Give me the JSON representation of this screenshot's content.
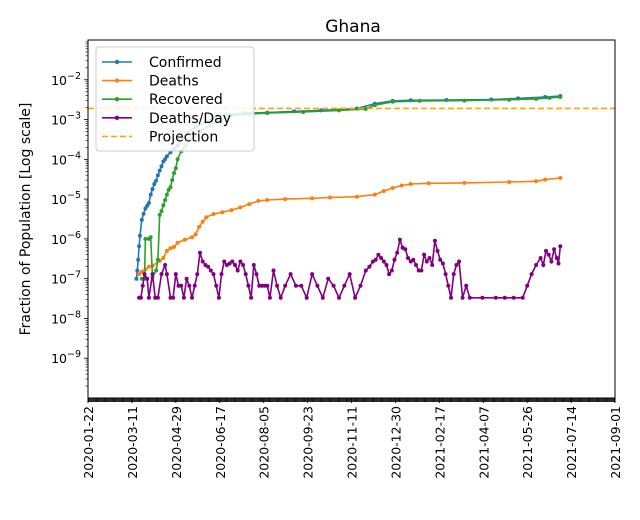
{
  "chart_data": {
    "type": "line",
    "title": "Ghana",
    "xlabel": "",
    "ylabel": "Fraction of Population [Log scale]",
    "yscale": "log",
    "ylim": [
      1e-10,
      0.1
    ],
    "xlim": [
      "2020-01-22",
      "2021-09-01"
    ],
    "x_ticks": [
      "2020-01-22",
      "2020-03-11",
      "2020-04-29",
      "2020-06-17",
      "2020-08-05",
      "2020-09-23",
      "2020-11-11",
      "2020-12-30",
      "2021-02-17",
      "2021-04-07",
      "2021-05-26",
      "2021-07-14",
      "2021-09-01"
    ],
    "y_ticks": [
      {
        "exp": -9,
        "label": "10",
        "sup": "−9"
      },
      {
        "exp": -8,
        "label": "10",
        "sup": "−8"
      },
      {
        "exp": -7,
        "label": "10",
        "sup": "−7"
      },
      {
        "exp": -6,
        "label": "10",
        "sup": "−6"
      },
      {
        "exp": -5,
        "label": "10",
        "sup": "−5"
      },
      {
        "exp": -4,
        "label": "10",
        "sup": "−4"
      },
      {
        "exp": -3,
        "label": "10",
        "sup": "−3"
      },
      {
        "exp": -2,
        "label": "10",
        "sup": "−2"
      }
    ],
    "legend": [
      {
        "name": "Confirmed",
        "color": "#1f77b4",
        "style": "line-marker"
      },
      {
        "name": "Deaths",
        "color": "#ff7f0e",
        "style": "line-marker"
      },
      {
        "name": "Recovered",
        "color": "#2ca02c",
        "style": "line-marker"
      },
      {
        "name": "Deaths/Day",
        "color": "#800080",
        "style": "line-marker"
      },
      {
        "name": "Projection",
        "color": "#ffa500",
        "style": "dashed"
      }
    ],
    "legend_position": "top-left",
    "projection_value": 0.0019,
    "series": [
      {
        "name": "Confirmed",
        "color": "#1f77b4",
        "points": [
          [
            54,
            1e-07
          ],
          [
            55,
            1.6e-07
          ],
          [
            56,
            3e-07
          ],
          [
            57,
            6.5e-07
          ],
          [
            58,
            1.2e-06
          ],
          [
            60,
            3e-06
          ],
          [
            62,
            4.3e-06
          ],
          [
            64,
            5.8e-06
          ],
          [
            66,
            6.8e-06
          ],
          [
            68,
            8e-06
          ],
          [
            70,
            1.3e-05
          ],
          [
            72,
            1.8e-05
          ],
          [
            74,
            2.4e-05
          ],
          [
            76,
            2.9e-05
          ],
          [
            78,
            4e-05
          ],
          [
            80,
            5.2e-05
          ],
          [
            82,
            6.7e-05
          ],
          [
            84,
            8.8e-05
          ],
          [
            86,
            0.0001
          ],
          [
            88,
            0.00012
          ],
          [
            92,
            0.00015
          ],
          [
            96,
            0.00018
          ],
          [
            100,
            0.00022
          ],
          [
            105,
            0.00032
          ],
          [
            110,
            0.00045
          ],
          [
            120,
            0.00065
          ],
          [
            130,
            0.00085
          ],
          [
            140,
            0.0011
          ],
          [
            155,
            0.00135
          ],
          [
            175,
            0.00145
          ],
          [
            200,
            0.0015
          ],
          [
            230,
            0.0016
          ],
          [
            260,
            0.0017
          ],
          [
            300,
            0.0019
          ],
          [
            320,
            0.0025
          ],
          [
            340,
            0.00295
          ],
          [
            360,
            0.00305
          ],
          [
            400,
            0.0031
          ],
          [
            450,
            0.0032
          ],
          [
            480,
            0.0034
          ],
          [
            510,
            0.0037
          ],
          [
            527,
            0.0039
          ]
        ]
      },
      {
        "name": "Deaths",
        "color": "#ff7f0e",
        "points": [
          [
            57,
            1.3e-07
          ],
          [
            60,
            1.5e-07
          ],
          [
            64,
            1.7e-07
          ],
          [
            68,
            2e-07
          ],
          [
            72,
            2.1e-07
          ],
          [
            80,
            2.8e-07
          ],
          [
            84,
            3.3e-07
          ],
          [
            88,
            5e-07
          ],
          [
            92,
            5.8e-07
          ],
          [
            96,
            6.3e-07
          ],
          [
            100,
            8e-07
          ],
          [
            108,
            9.5e-07
          ],
          [
            116,
            1.1e-06
          ],
          [
            120,
            1.3e-06
          ],
          [
            124,
            2e-06
          ],
          [
            128,
            2.7e-06
          ],
          [
            132,
            3.5e-06
          ],
          [
            140,
            4.2e-06
          ],
          [
            150,
            4.7e-06
          ],
          [
            160,
            5.3e-06
          ],
          [
            170,
            6.2e-06
          ],
          [
            180,
            7.5e-06
          ],
          [
            190,
            9e-06
          ],
          [
            200,
            9.5e-06
          ],
          [
            220,
            1e-05
          ],
          [
            250,
            1.05e-05
          ],
          [
            270,
            1.1e-05
          ],
          [
            300,
            1.15e-05
          ],
          [
            320,
            1.3e-05
          ],
          [
            330,
            1.6e-05
          ],
          [
            340,
            1.9e-05
          ],
          [
            350,
            2.2e-05
          ],
          [
            360,
            2.4e-05
          ],
          [
            380,
            2.5e-05
          ],
          [
            420,
            2.55e-05
          ],
          [
            470,
            2.7e-05
          ],
          [
            500,
            2.8e-05
          ],
          [
            510,
            3.1e-05
          ],
          [
            527,
            3.4e-05
          ]
        ]
      },
      {
        "name": "Recovered",
        "color": "#2ca02c",
        "points": [
          [
            60,
            1e-07
          ],
          [
            63,
            1e-07
          ],
          [
            64,
            1e-06
          ],
          [
            68,
            1e-06
          ],
          [
            70,
            1.1e-06
          ],
          [
            72,
            1.1e-07
          ],
          [
            76,
            1.6e-07
          ],
          [
            78,
            3e-07
          ],
          [
            80,
            4e-06
          ],
          [
            82,
            5e-06
          ],
          [
            84,
            7e-06
          ],
          [
            86,
            9.5e-06
          ],
          [
            88,
            1.3e-05
          ],
          [
            90,
            1.7e-05
          ],
          [
            92,
            2e-05
          ],
          [
            94,
            3e-05
          ],
          [
            96,
            4.5e-05
          ],
          [
            98,
            6e-05
          ],
          [
            100,
            0.0001
          ],
          [
            104,
            0.00016
          ],
          [
            108,
            0.00021
          ],
          [
            116,
            0.00032
          ],
          [
            126,
            0.00052
          ],
          [
            136,
            0.00072
          ],
          [
            146,
            0.00095
          ],
          [
            160,
            0.00125
          ],
          [
            180,
            0.00138
          ],
          [
            200,
            0.00145
          ],
          [
            240,
            0.00155
          ],
          [
            280,
            0.0017
          ],
          [
            310,
            0.00185
          ],
          [
            320,
            0.0023
          ],
          [
            340,
            0.0028
          ],
          [
            370,
            0.00295
          ],
          [
            420,
            0.003
          ],
          [
            470,
            0.00315
          ],
          [
            500,
            0.0033
          ],
          [
            515,
            0.0035
          ],
          [
            527,
            0.0037
          ]
        ]
      },
      {
        "name": "Deaths/Day",
        "color": "#800080",
        "points": [
          [
            57,
            3.3e-08
          ],
          [
            59,
            3.3e-08
          ],
          [
            61,
            6.6e-08
          ],
          [
            63,
            1.3e-07
          ],
          [
            66,
            1e-07
          ],
          [
            68,
            3.3e-08
          ],
          [
            72,
            1.3e-07
          ],
          [
            75,
            3.3e-08
          ],
          [
            78,
            3.3e-08
          ],
          [
            82,
            1.3e-07
          ],
          [
            86,
            2.2e-07
          ],
          [
            88,
            1.3e-07
          ],
          [
            92,
            3.3e-08
          ],
          [
            95,
            3.3e-08
          ],
          [
            98,
            1.3e-07
          ],
          [
            101,
            6.6e-08
          ],
          [
            104,
            6.6e-08
          ],
          [
            107,
            3.3e-08
          ],
          [
            110,
            1e-07
          ],
          [
            113,
            6.6e-08
          ],
          [
            116,
            3.3e-08
          ],
          [
            119,
            6.6e-08
          ],
          [
            122,
            1.3e-07
          ],
          [
            125,
            4.5e-07
          ],
          [
            128,
            2.7e-07
          ],
          [
            131,
            2.2e-07
          ],
          [
            134,
            2e-07
          ],
          [
            137,
            1.6e-07
          ],
          [
            140,
            1.3e-07
          ],
          [
            143,
            6.6e-08
          ],
          [
            146,
            3.3e-08
          ],
          [
            149,
            1.3e-07
          ],
          [
            152,
            2.7e-07
          ],
          [
            155,
            2.2e-07
          ],
          [
            158,
            2.4e-07
          ],
          [
            161,
            2.7e-07
          ],
          [
            164,
            2.2e-07
          ],
          [
            167,
            1.6e-07
          ],
          [
            170,
            2.7e-07
          ],
          [
            173,
            2.2e-07
          ],
          [
            176,
            1.3e-07
          ],
          [
            179,
            6.6e-08
          ],
          [
            182,
            3.3e-08
          ],
          [
            185,
            2.2e-07
          ],
          [
            188,
            1.3e-07
          ],
          [
            191,
            6.6e-08
          ],
          [
            194,
            6.6e-08
          ],
          [
            197,
            6.6e-08
          ],
          [
            200,
            6.6e-08
          ],
          [
            203,
            3.3e-08
          ],
          [
            207,
            1.6e-07
          ],
          [
            211,
            6.6e-08
          ],
          [
            215,
            3.3e-08
          ],
          [
            220,
            6.6e-08
          ],
          [
            226,
            1.3e-07
          ],
          [
            232,
            6.6e-08
          ],
          [
            238,
            6.6e-08
          ],
          [
            244,
            3.3e-08
          ],
          [
            250,
            1.3e-07
          ],
          [
            256,
            6.6e-08
          ],
          [
            262,
            3.3e-08
          ],
          [
            268,
            1e-07
          ],
          [
            274,
            6.6e-08
          ],
          [
            280,
            3.3e-08
          ],
          [
            286,
            6.6e-08
          ],
          [
            292,
            1.3e-07
          ],
          [
            298,
            3.3e-08
          ],
          [
            304,
            6.6e-08
          ],
          [
            310,
            1.6e-07
          ],
          [
            314,
            2e-07
          ],
          [
            318,
            2.7e-07
          ],
          [
            321,
            3e-07
          ],
          [
            324,
            4e-07
          ],
          [
            327,
            3.3e-07
          ],
          [
            330,
            2.7e-07
          ],
          [
            333,
            2.2e-07
          ],
          [
            336,
            1.3e-07
          ],
          [
            339,
            1.6e-07
          ],
          [
            342,
            3e-07
          ],
          [
            345,
            4.5e-07
          ],
          [
            348,
            9.5e-07
          ],
          [
            351,
            6e-07
          ],
          [
            354,
            5.5e-07
          ],
          [
            357,
            3.3e-07
          ],
          [
            360,
            2.7e-07
          ],
          [
            363,
            3e-07
          ],
          [
            366,
            2.2e-07
          ],
          [
            369,
            1.6e-07
          ],
          [
            372,
            1.6e-07
          ],
          [
            375,
            4e-07
          ],
          [
            378,
            2.7e-07
          ],
          [
            381,
            3.3e-07
          ],
          [
            384,
            2.2e-07
          ],
          [
            387,
            9e-07
          ],
          [
            390,
            5e-07
          ],
          [
            393,
            3e-07
          ],
          [
            396,
            2.4e-07
          ],
          [
            399,
            1.3e-07
          ],
          [
            402,
            6.6e-08
          ],
          [
            405,
            3.3e-08
          ],
          [
            408,
            1.3e-07
          ],
          [
            411,
            2.2e-07
          ],
          [
            414,
            2.7e-07
          ],
          [
            418,
            3.3e-08
          ],
          [
            422,
            6.6e-08
          ],
          [
            426,
            3.3e-08
          ],
          [
            440,
            3.3e-08
          ],
          [
            455,
            3.3e-08
          ],
          [
            465,
            3.3e-08
          ],
          [
            475,
            3.3e-08
          ],
          [
            485,
            3.3e-08
          ],
          [
            490,
            6.6e-08
          ],
          [
            495,
            1.3e-07
          ],
          [
            500,
            2.2e-07
          ],
          [
            505,
            3.3e-07
          ],
          [
            508,
            2.2e-07
          ],
          [
            511,
            5e-07
          ],
          [
            514,
            4e-07
          ],
          [
            517,
            2.7e-07
          ],
          [
            520,
            5.5e-07
          ],
          [
            523,
            3.3e-07
          ],
          [
            525,
            2.4e-07
          ],
          [
            527,
            6.5e-07
          ]
        ]
      }
    ]
  }
}
